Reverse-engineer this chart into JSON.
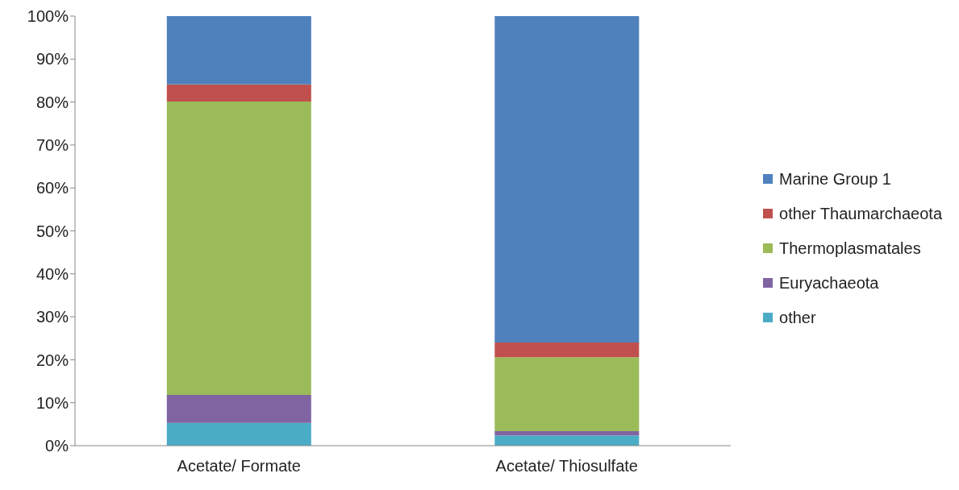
{
  "chart_data": {
    "type": "bar",
    "stacked": true,
    "categories": [
      "Acetate/ Formate",
      "Acetate/ Thiosulfate"
    ],
    "series": [
      {
        "name": "other",
        "color": "#4bacc6",
        "values": [
          5.3,
          2.4
        ]
      },
      {
        "name": "Euryachaeota",
        "color": "#8064a2",
        "values": [
          6.5,
          1.0
        ]
      },
      {
        "name": "Thermoplasmatales",
        "color": "#9bbb59",
        "values": [
          68.3,
          17.2
        ]
      },
      {
        "name": "other Thaumarchaeota",
        "color": "#c0504d",
        "values": [
          4.0,
          3.4
        ]
      },
      {
        "name": "Marine Group 1",
        "color": "#4f81bd",
        "values": [
          15.9,
          76.0
        ]
      }
    ],
    "ylim": [
      0,
      100
    ],
    "yticks": [
      {
        "value": 0,
        "label": "0%"
      },
      {
        "value": 10,
        "label": "10%"
      },
      {
        "value": 20,
        "label": "20%"
      },
      {
        "value": 30,
        "label": "30%"
      },
      {
        "value": 40,
        "label": "40%"
      },
      {
        "value": 50,
        "label": "50%"
      },
      {
        "value": 60,
        "label": "60%"
      },
      {
        "value": 70,
        "label": "70%"
      },
      {
        "value": 80,
        "label": "80%"
      },
      {
        "value": 90,
        "label": "90%"
      },
      {
        "value": 100,
        "label": "100%"
      }
    ],
    "legend": "right",
    "grid": false
  }
}
